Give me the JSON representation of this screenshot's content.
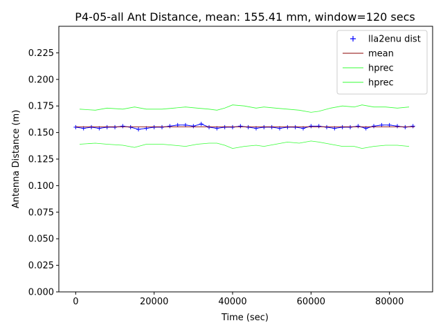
{
  "chart_data": {
    "type": "line",
    "title": "P4-05-all Ant Distance, mean: 155.41 mm, window=120 secs",
    "xlabel": "Time (sec)",
    "ylabel": "Antenna Distance (m)",
    "xlim": [
      -4300,
      91000
    ],
    "ylim": [
      0.0,
      0.25
    ],
    "xticks": [
      0,
      20000,
      40000,
      60000,
      80000
    ],
    "xtick_labels": [
      "0",
      "20000",
      "40000",
      "60000",
      "80000"
    ],
    "yticks": [
      0.0,
      0.025,
      0.05,
      0.075,
      0.1,
      0.125,
      0.15,
      0.175,
      0.2,
      0.225
    ],
    "ytick_labels": [
      "0.000",
      "0.025",
      "0.050",
      "0.075",
      "0.100",
      "0.125",
      "0.150",
      "0.175",
      "0.200",
      "0.225"
    ],
    "grid": false,
    "legend_position": "top-right",
    "series": [
      {
        "name": "lla2enu dist",
        "kind": "markers",
        "marker": "+",
        "color": "#0000ff",
        "x": [
          0,
          2000,
          4000,
          6000,
          8000,
          10000,
          12000,
          14000,
          16000,
          18000,
          20000,
          22000,
          24000,
          26000,
          28000,
          30000,
          32000,
          34000,
          36000,
          38000,
          40000,
          42000,
          44000,
          46000,
          48000,
          50000,
          52000,
          54000,
          56000,
          58000,
          60000,
          62000,
          64000,
          66000,
          68000,
          70000,
          72000,
          74000,
          76000,
          78000,
          80000,
          82000,
          84000,
          86000
        ],
        "y": [
          0.155,
          0.154,
          0.155,
          0.154,
          0.155,
          0.155,
          0.156,
          0.155,
          0.153,
          0.154,
          0.155,
          0.155,
          0.156,
          0.157,
          0.157,
          0.156,
          0.158,
          0.155,
          0.154,
          0.155,
          0.155,
          0.156,
          0.155,
          0.154,
          0.155,
          0.155,
          0.154,
          0.155,
          0.155,
          0.154,
          0.156,
          0.156,
          0.155,
          0.154,
          0.155,
          0.155,
          0.156,
          0.154,
          0.156,
          0.157,
          0.157,
          0.156,
          0.155,
          0.156
        ]
      },
      {
        "name": "mean",
        "kind": "line",
        "color": "#8b0000",
        "x": [
          0,
          86400
        ],
        "y": [
          0.15541,
          0.15541
        ]
      },
      {
        "name": "hprec",
        "kind": "line",
        "color": "#33ff33",
        "x": [
          1000,
          5000,
          8000,
          12000,
          15000,
          18000,
          22000,
          25000,
          28000,
          31000,
          34000,
          36000,
          38000,
          40000,
          43000,
          46000,
          48000,
          51000,
          54000,
          57000,
          60000,
          62000,
          65000,
          68000,
          71000,
          73000,
          76000,
          79000,
          82000,
          85000
        ],
        "y": [
          0.172,
          0.171,
          0.173,
          0.172,
          0.174,
          0.172,
          0.172,
          0.173,
          0.174,
          0.173,
          0.172,
          0.171,
          0.173,
          0.176,
          0.175,
          0.173,
          0.174,
          0.173,
          0.172,
          0.171,
          0.169,
          0.17,
          0.173,
          0.175,
          0.174,
          0.176,
          0.174,
          0.174,
          0.173,
          0.174
        ]
      },
      {
        "name": "hprec",
        "kind": "line",
        "color": "#33ff33",
        "x": [
          1000,
          5000,
          8000,
          12000,
          15000,
          18000,
          22000,
          25000,
          28000,
          31000,
          34000,
          36000,
          38000,
          40000,
          43000,
          46000,
          48000,
          51000,
          54000,
          57000,
          60000,
          62000,
          65000,
          68000,
          71000,
          73000,
          76000,
          79000,
          82000,
          85000
        ],
        "y": [
          0.139,
          0.14,
          0.139,
          0.138,
          0.136,
          0.139,
          0.139,
          0.138,
          0.137,
          0.139,
          0.14,
          0.14,
          0.138,
          0.135,
          0.137,
          0.138,
          0.137,
          0.139,
          0.141,
          0.14,
          0.142,
          0.141,
          0.139,
          0.137,
          0.137,
          0.135,
          0.137,
          0.138,
          0.138,
          0.137
        ]
      }
    ]
  }
}
